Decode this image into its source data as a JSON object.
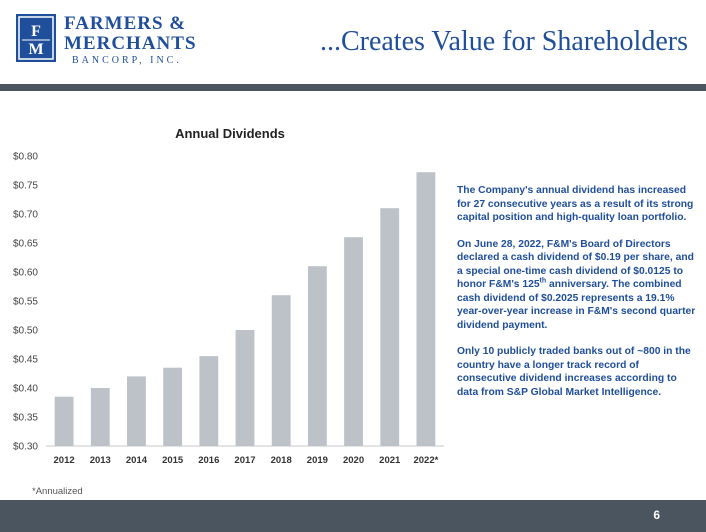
{
  "logo": {
    "mark": "F&M",
    "line1": "FARMERS &",
    "line2": "MERCHANTS",
    "line3": "BANCORP, INC.",
    "color": "#1f4e9a"
  },
  "header": {
    "title": "...Creates Value for Shareholders"
  },
  "body": {
    "para1": "The Company's annual dividend has increased for 27 consecutive years as a result of its strong capital position and high-quality loan portfolio.",
    "para2_pre": "On June 28, 2022, F&M's Board of Directors declared a cash dividend of $0.19 per share, and a special one-time cash dividend of $0.0125 to honor F&M's 125",
    "para2_sup": "th",
    "para2_post": " anniversary. The combined cash dividend of $0.2025 represents a 19.1% year-over-year increase in F&M's second quarter dividend payment.",
    "para3": "Only 10 publicly traded banks out of ~800 in the country have a longer track record of consecutive dividend increases according to data from S&P Global Market Intelligence."
  },
  "footnote": "*Annualized",
  "footer": {
    "page_number": "6"
  },
  "chart_data": {
    "type": "bar",
    "title": "Annual Dividends",
    "categories": [
      "2012",
      "2013",
      "2014",
      "2015",
      "2016",
      "2017",
      "2018",
      "2019",
      "2020",
      "2021",
      "2022*"
    ],
    "values": [
      0.385,
      0.4,
      0.42,
      0.435,
      0.455,
      0.5,
      0.56,
      0.61,
      0.66,
      0.71,
      0.772
    ],
    "ylim": [
      0.3,
      0.8
    ],
    "yticks": [
      "$0.30",
      "$0.35",
      "$0.40",
      "$0.45",
      "$0.50",
      "$0.55",
      "$0.60",
      "$0.65",
      "$0.70",
      "$0.75",
      "$0.80"
    ],
    "xlabel": "",
    "ylabel": "",
    "grid": false,
    "bar_color": "#bcc2c8"
  }
}
